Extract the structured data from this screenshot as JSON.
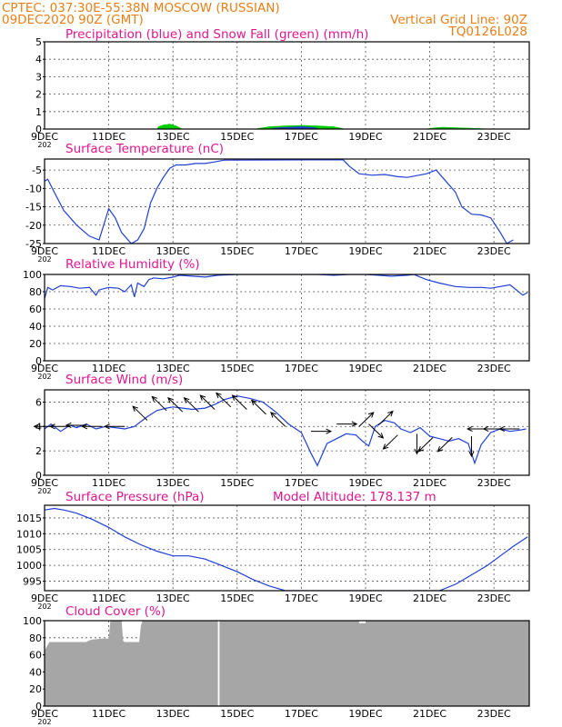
{
  "header": {
    "line1_left": "CPTEC:  037:30E-55:38N  MOSCOW (RUSSIAN)",
    "line2_left": "09DEC2020 90Z (GMT)",
    "line2_right": "Vertical Grid Line: 90Z",
    "line3_right": "TQ0126L028",
    "color": "#e87f17",
    "title_color": "#e0178f"
  },
  "x_ticks": [
    "9DEC",
    "11DEC",
    "13DEC",
    "15DEC",
    "17DEC",
    "19DEC",
    "21DEC",
    "23DEC"
  ],
  "x_tick_days": [
    9,
    11,
    13,
    15,
    17,
    19,
    21,
    23
  ],
  "x_range": [
    9,
    24.1
  ],
  "axis_left_stub": "202",
  "model_altitude": "Model Altitude: 178.137 m",
  "chart_data": [
    {
      "id": "precip",
      "type": "area",
      "title": "Precipitation (blue) and Snow Fall (green) (mm/h)",
      "ylim": [
        0,
        5
      ],
      "yticks": [
        0,
        1,
        2,
        3,
        4,
        5
      ],
      "grid": true,
      "series": [
        {
          "color": "#00cc00",
          "x": [
            12.5,
            12.55,
            12.7,
            12.9,
            13.1,
            13.3,
            15.5,
            16.0,
            16.5,
            17.0,
            17.5,
            18.0,
            18.4,
            20.8,
            21.1,
            21.4,
            21.7,
            22.0,
            22.4,
            22.6,
            23.0
          ],
          "y": [
            0,
            0.15,
            0.25,
            0.3,
            0.2,
            0,
            0,
            0.15,
            0.2,
            0.22,
            0.2,
            0.15,
            0,
            0,
            0.08,
            0.12,
            0.1,
            0.08,
            0.05,
            0.04,
            0
          ]
        },
        {
          "color": "#1f3fd6",
          "x": [
            16.0,
            16.2,
            16.6,
            17.0,
            17.4,
            17.6
          ],
          "y": [
            0,
            0.08,
            0.12,
            0.15,
            0.1,
            0
          ]
        }
      ]
    },
    {
      "id": "temp",
      "type": "line",
      "title": "Surface Temperature (nC)",
      "ylim": [
        -25,
        -2
      ],
      "yticks": [
        -25,
        -20,
        -15,
        -10,
        -5
      ],
      "grid": true,
      "series": [
        {
          "color": "#1f3fd6",
          "x": [
            9.0,
            9.1,
            9.3,
            9.6,
            10.0,
            10.4,
            10.7,
            11.0,
            11.2,
            11.4,
            11.7,
            11.9,
            12.1,
            12.3,
            12.5,
            12.7,
            12.9,
            13.1,
            13.4,
            13.7,
            14.0,
            14.3,
            14.6,
            18.3,
            18.5,
            18.8,
            19.2,
            19.6,
            20.0,
            20.3,
            20.6,
            20.9,
            21.2,
            21.5,
            21.8,
            22.0,
            22.3,
            22.6,
            22.9,
            23.2,
            23.4,
            23.6
          ],
          "y": [
            -8,
            -7.5,
            -11,
            -16,
            -20,
            -23,
            -24,
            -15.5,
            -18,
            -22,
            -25,
            -24,
            -21,
            -14,
            -10,
            -7,
            -4.5,
            -3.6,
            -3.6,
            -3.2,
            -3.2,
            -2.8,
            -2.3,
            -2.2,
            -4,
            -6,
            -6.4,
            -6.2,
            -6.8,
            -7,
            -6.5,
            -6,
            -5,
            -8,
            -11,
            -15,
            -17,
            -17.2,
            -18,
            -22,
            -25,
            -24
          ]
        }
      ]
    },
    {
      "id": "rh",
      "type": "line",
      "title": "Relative Humidity (%)",
      "ylim": [
        0,
        100
      ],
      "yticks": [
        0,
        20,
        40,
        60,
        80,
        100
      ],
      "grid": true,
      "series": [
        {
          "color": "#1f3fd6",
          "x": [
            9.0,
            9.1,
            9.25,
            9.5,
            9.8,
            10.1,
            10.4,
            10.6,
            10.7,
            10.8,
            11.0,
            11.3,
            11.5,
            11.7,
            11.8,
            11.9,
            12.1,
            12.25,
            12.4,
            12.7,
            13.0,
            13.2,
            13.6,
            14.0,
            14.4,
            15.0,
            16.0,
            16.5,
            17.0,
            17.5,
            18.0,
            18.5,
            19.0,
            19.4,
            19.8,
            20.3,
            20.5,
            20.9,
            21.3,
            21.8,
            22.2,
            22.6,
            22.9,
            23.2,
            23.5,
            23.7,
            23.9,
            24.05
          ],
          "y": [
            72,
            85,
            82,
            87,
            86,
            84,
            85,
            76,
            82,
            83,
            85,
            84,
            80,
            88,
            74,
            90,
            86,
            94,
            96,
            95,
            97,
            99,
            98,
            97,
            99,
            100,
            100,
            100,
            100,
            100,
            99,
            100,
            100,
            99,
            98,
            99,
            100,
            94,
            90,
            86,
            85,
            85,
            84,
            86,
            88,
            82,
            76,
            79
          ]
        }
      ]
    },
    {
      "id": "wind",
      "type": "line",
      "title": "Surface Wind (m/s)",
      "ylim": [
        0,
        7
      ],
      "yticks": [
        0,
        2,
        4,
        6
      ],
      "grid": true,
      "series": [
        {
          "color": "#1f3fd6",
          "x": [
            9.0,
            9.2,
            9.5,
            9.8,
            10.0,
            10.3,
            10.6,
            10.9,
            11.2,
            11.5,
            11.8,
            12.0,
            12.2,
            12.5,
            12.8,
            13.0,
            13.3,
            13.6,
            14.0,
            14.3,
            14.6,
            15.0,
            15.4,
            15.8,
            16.2,
            16.6,
            17.0,
            17.3,
            17.5,
            17.8,
            18.1,
            18.4,
            18.7,
            18.9,
            19.1,
            19.3,
            19.6,
            19.9,
            20.1,
            20.4,
            20.7,
            21.0,
            21.3,
            21.6,
            21.9,
            22.2,
            22.4,
            22.6,
            22.9,
            23.2,
            23.5,
            23.8,
            24.0
          ],
          "y": [
            3.8,
            4.2,
            3.6,
            4.1,
            3.9,
            4.2,
            3.8,
            4.0,
            3.9,
            3.8,
            4.0,
            4.4,
            4.8,
            5.3,
            5.5,
            5.6,
            5.5,
            5.4,
            5.5,
            5.8,
            6.2,
            6.5,
            6.3,
            6.0,
            5.2,
            4.2,
            3.5,
            1.8,
            0.8,
            2.6,
            3.0,
            3.4,
            3.3,
            2.8,
            2.4,
            4.0,
            4.5,
            4.3,
            3.8,
            3.5,
            3.9,
            3.2,
            3.0,
            2.8,
            3.0,
            2.6,
            1.0,
            2.5,
            3.5,
            3.8,
            3.6,
            3.7,
            3.8
          ]
        }
      ],
      "arrows": {
        "color": "#000000",
        "items": [
          {
            "x": 9.3,
            "y": 4.0,
            "dir": "W"
          },
          {
            "x": 9.8,
            "y": 4.0,
            "dir": "W"
          },
          {
            "x": 10.3,
            "y": 4.1,
            "dir": "W"
          },
          {
            "x": 10.8,
            "y": 4.0,
            "dir": "W"
          },
          {
            "x": 11.5,
            "y": 4.0,
            "dir": "W"
          },
          {
            "x": 12.2,
            "y": 4.5,
            "dir": "NW"
          },
          {
            "x": 12.8,
            "y": 5.3,
            "dir": "NW"
          },
          {
            "x": 13.3,
            "y": 5.2,
            "dir": "NW"
          },
          {
            "x": 13.8,
            "y": 5.2,
            "dir": "NW"
          },
          {
            "x": 14.3,
            "y": 5.4,
            "dir": "NW"
          },
          {
            "x": 14.8,
            "y": 5.6,
            "dir": "NW"
          },
          {
            "x": 15.3,
            "y": 5.4,
            "dir": "NW"
          },
          {
            "x": 15.9,
            "y": 5.0,
            "dir": "NW"
          },
          {
            "x": 16.5,
            "y": 4.0,
            "dir": "NW"
          },
          {
            "x": 17.3,
            "y": 3.6,
            "dir": "E"
          },
          {
            "x": 18.1,
            "y": 4.2,
            "dir": "E"
          },
          {
            "x": 18.8,
            "y": 4.0,
            "dir": "NE"
          },
          {
            "x": 19.1,
            "y": 4.2,
            "dir": "SE"
          },
          {
            "x": 19.4,
            "y": 4.1,
            "dir": "NE"
          },
          {
            "x": 20.0,
            "y": 3.3,
            "dir": "SW"
          },
          {
            "x": 20.6,
            "y": 3.4,
            "dir": "S"
          },
          {
            "x": 21.1,
            "y": 3.1,
            "dir": "SW"
          },
          {
            "x": 21.7,
            "y": 3.1,
            "dir": "SW"
          },
          {
            "x": 22.3,
            "y": 3.2,
            "dir": "S"
          },
          {
            "x": 22.8,
            "y": 3.8,
            "dir": "W"
          },
          {
            "x": 23.3,
            "y": 3.8,
            "dir": "W"
          },
          {
            "x": 23.8,
            "y": 3.8,
            "dir": "W"
          }
        ]
      }
    },
    {
      "id": "pressure",
      "type": "line",
      "title": "Surface Pressure (hPa)",
      "ylim": [
        992,
        1019
      ],
      "yticks": [
        995,
        1000,
        1005,
        1010,
        1015
      ],
      "grid": true,
      "series": [
        {
          "color": "#1f3fd6",
          "x": [
            9.0,
            9.3,
            9.6,
            10.0,
            10.5,
            11.0,
            11.5,
            12.0,
            12.5,
            13.0,
            13.5,
            14.0,
            14.5,
            15.0,
            15.5,
            16.0,
            16.5,
            21.3,
            21.8,
            22.3,
            22.8,
            23.2,
            23.6,
            24.05
          ],
          "y": [
            1017.5,
            1018,
            1017.5,
            1016.5,
            1014.5,
            1012,
            1009,
            1006.5,
            1004.5,
            1003,
            1003,
            1002,
            1000,
            998,
            995.5,
            993.5,
            992,
            992,
            994,
            997,
            1000,
            1003,
            1006,
            1009
          ]
        }
      ]
    },
    {
      "id": "cloud",
      "type": "area",
      "title": "Cloud Cover (%)",
      "ylim": [
        0,
        100
      ],
      "yticks": [
        0,
        20,
        40,
        60,
        80,
        100
      ],
      "grid": true,
      "series": [
        {
          "color": "#a6a6a6",
          "x": [
            9.0,
            9.15,
            9.6,
            10.3,
            10.4,
            10.5,
            10.8,
            11.0,
            11.05,
            11.4,
            11.45,
            11.5,
            11.95,
            12.0,
            12.05,
            12.3,
            24.1
          ],
          "y": [
            65,
            75,
            75,
            75,
            77,
            78,
            79,
            79,
            100,
            100,
            76,
            75,
            75,
            94,
            100,
            100,
            100
          ]
        }
      ],
      "gap_x": [
        14.4,
        14.45
      ],
      "notch": {
        "x": [
          18.8,
          19.0
        ],
        "y": 97
      }
    }
  ]
}
